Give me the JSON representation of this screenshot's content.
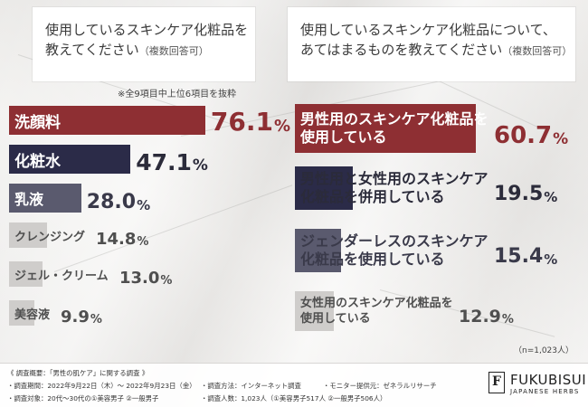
{
  "left_question": {
    "line1": "使用しているスキンケア化粧品を",
    "line2": "教えてください",
    "line2_small": "（複数回答可）"
  },
  "right_question": {
    "line1": "使用しているスキンケア化粧品について、",
    "line2": "あてはまるものを教えてください",
    "line2_small": "（複数回答可）"
  },
  "note": "※全9項目中上位6項目を抜粋",
  "n_note": "（n=1,023人）",
  "colors": {
    "maroon": "#8e2f33",
    "navy": "#2b2b48",
    "slate": "#5a5a6e",
    "gray_bar": "#cfcdcb",
    "gray_text": "#4f4f4f"
  },
  "chart_data": [
    {
      "type": "bar",
      "orientation": "horizontal",
      "categories": [
        "洗顔料",
        "化粧水",
        "乳液",
        "クレンジング",
        "ジェル・クリーム",
        "美容液"
      ],
      "values": [
        76.1,
        47.1,
        28.0,
        14.8,
        13.0,
        9.9
      ],
      "value_labels": [
        "76.1",
        "47.1",
        "28.0",
        "14.8",
        "13.0",
        "9.9"
      ],
      "unit": "%",
      "xlim": [
        0,
        100
      ]
    },
    {
      "type": "bar",
      "orientation": "horizontal",
      "categories": [
        [
          "男性用のスキンケア化粧品を",
          "使用している"
        ],
        [
          "男性用と女性用のスキンケア",
          "化粧品を併用している"
        ],
        [
          "ジェンダーレスのスキンケア",
          "化粧品を使用している"
        ],
        [
          "女性用のスキンケア化粧品を",
          "使用している"
        ]
      ],
      "values": [
        60.7,
        19.5,
        15.4,
        12.9
      ],
      "value_labels": [
        "60.7",
        "19.5",
        "15.4",
        "12.9"
      ],
      "unit": "%",
      "xlim": [
        0,
        100
      ]
    }
  ],
  "footer": {
    "title": "《 調査概要：「男性の肌ケア」に関する調査 》",
    "period": "・調査期間：2022年9月22日（木）～ 2022年9月23日（金）",
    "target": "・調査対象：20代～30代の①美容男子 ②一般男子",
    "method": "・調査方法：インターネット調査",
    "count": "・調査人数：1,023人（①美容男子517人 ②一般男子506人）",
    "monitor": "・モニター提供元：ゼネラルリサーチ",
    "logo_mark": "F",
    "logo_name": "FUKUBISUI",
    "logo_sub": "JAPANESE HERBS"
  }
}
